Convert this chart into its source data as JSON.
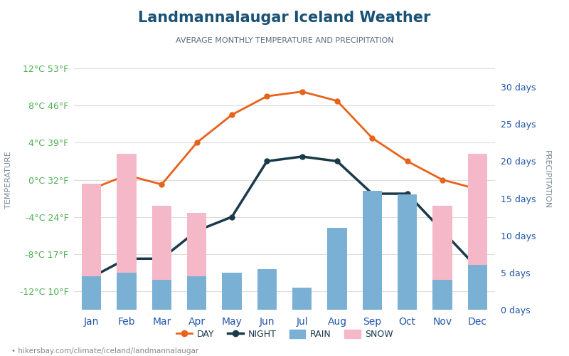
{
  "title": "Landmannalaugar Iceland Weather",
  "subtitle": "AVERAGE MONTHLY TEMPERATURE AND PRECIPITATION",
  "months": [
    "Jan",
    "Feb",
    "Mar",
    "Apr",
    "May",
    "Jun",
    "Jul",
    "Aug",
    "Sep",
    "Oct",
    "Nov",
    "Dec"
  ],
  "day_temp": [
    -1.0,
    0.5,
    -0.5,
    4.0,
    7.0,
    9.0,
    9.5,
    8.5,
    4.5,
    2.0,
    0.0,
    -1.0
  ],
  "night_temp": [
    -10.5,
    -8.5,
    -8.5,
    -5.5,
    -4.0,
    2.0,
    2.5,
    2.0,
    -1.5,
    -1.5,
    -5.5,
    -9.5
  ],
  "rain_days": [
    4.5,
    5.0,
    4.0,
    4.5,
    5.0,
    5.5,
    3.0,
    11.0,
    16.0,
    15.5,
    4.0,
    6.0
  ],
  "snow_days": [
    17.0,
    21.0,
    14.0,
    13.0,
    1.0,
    0.0,
    0.0,
    0.0,
    0.0,
    8.0,
    14.0,
    21.0
  ],
  "temp_ylim": [
    -14,
    14
  ],
  "temp_yticks": [
    -12,
    -8,
    -4,
    0,
    4,
    8,
    12
  ],
  "temp_ytick_labels": [
    "-12°C 10°F",
    "-8°C 17°F",
    "-4°C 24°F",
    "0°C 32°F",
    "4°C 39°F",
    "8°C 46°F",
    "12°C 53°F"
  ],
  "precip_ylim": [
    0,
    35
  ],
  "precip_yticks": [
    0,
    5,
    10,
    15,
    20,
    25,
    30
  ],
  "precip_ytick_labels": [
    "0 days",
    "5 days",
    "10 days",
    "15 days",
    "20 days",
    "25 days",
    "30 days"
  ],
  "day_color": "#e8621a",
  "night_color": "#1a3a4a",
  "rain_color": "#7ab0d4",
  "snow_color": "#f5b8c8",
  "title_color": "#1a5276",
  "subtitle_color": "#5d6d7e",
  "left_tick_color": "#4caf50",
  "right_tick_color": "#2255aa",
  "xlabel_color": "#2255aa",
  "ylabel_left_color": "#7a8a9a",
  "ylabel_right_color": "#7a8a9a",
  "watermark": "hikersbay.com/climate/iceland/landmannalaugar",
  "background_color": "#ffffff",
  "bar_width": 0.55
}
